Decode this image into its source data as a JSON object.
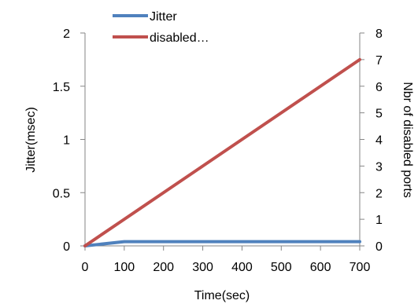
{
  "chart_data": {
    "type": "line",
    "x": [
      0,
      100,
      200,
      300,
      400,
      500,
      600,
      700
    ],
    "xlabel": "Time(sec)",
    "xlim": [
      0,
      700
    ],
    "xticks": [
      "0",
      "100",
      "200",
      "300",
      "400",
      "500",
      "600",
      "700"
    ],
    "ylabel_left": "Jitter(msec)",
    "ylim_left": [
      0,
      2
    ],
    "yticks_left": [
      "0",
      "0.5",
      "1",
      "1.5",
      "2"
    ],
    "ylabel_right": "Nbr of disabled ports",
    "ylim_right": [
      0,
      8
    ],
    "yticks_right": [
      "0",
      "1",
      "2",
      "3",
      "4",
      "5",
      "6",
      "7",
      "8"
    ],
    "grid": false,
    "legend_position": "top",
    "series": [
      {
        "name": "Jitter",
        "axis": "left",
        "color": "#4F81BD",
        "values": [
          0,
          0.04,
          0.04,
          0.04,
          0.04,
          0.04,
          0.04,
          0.04
        ]
      },
      {
        "name": "disabled…",
        "axis": "right",
        "color": "#C0504D",
        "values": [
          0,
          1,
          2,
          3,
          4,
          5,
          6,
          7
        ]
      }
    ]
  }
}
